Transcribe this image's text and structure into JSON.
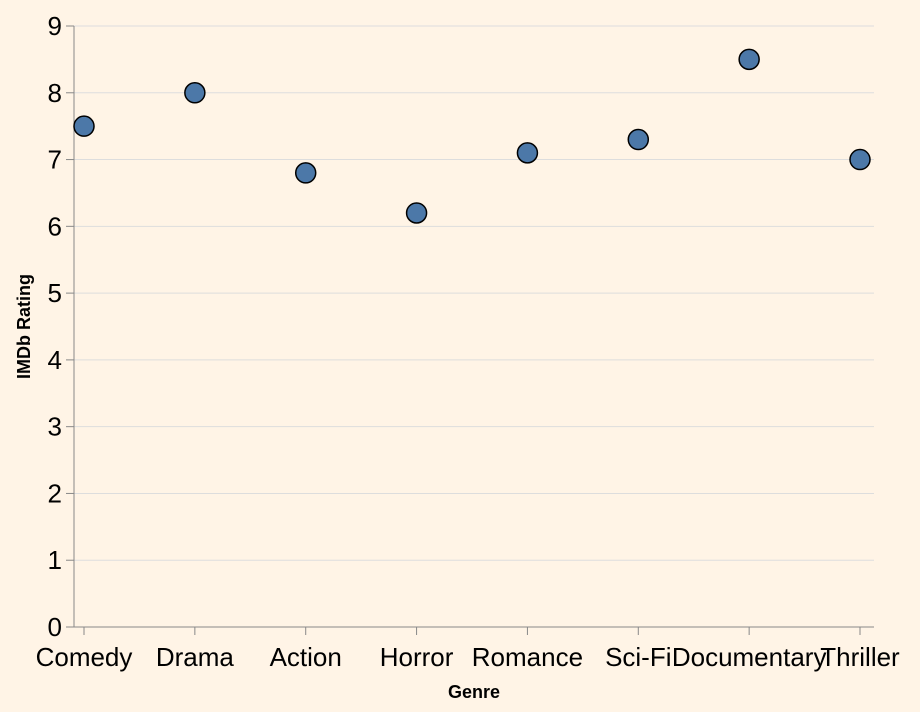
{
  "chart_data": {
    "type": "scatter",
    "title": "",
    "xlabel": "Genre",
    "ylabel": "IMDb Rating",
    "categories": [
      "Comedy",
      "Drama",
      "Action",
      "Horror",
      "Romance",
      "Sci-Fi",
      "Documentary",
      "Thriller"
    ],
    "values": [
      7.5,
      8.0,
      6.8,
      6.2,
      7.1,
      7.3,
      8.5,
      7.0
    ],
    "ylim": [
      0,
      9
    ],
    "yticks": [
      0,
      1,
      2,
      3,
      4,
      5,
      6,
      7,
      8,
      9
    ],
    "grid": true,
    "legend": "none",
    "point_color": "#4c78a8",
    "background": "#fff4e6"
  }
}
